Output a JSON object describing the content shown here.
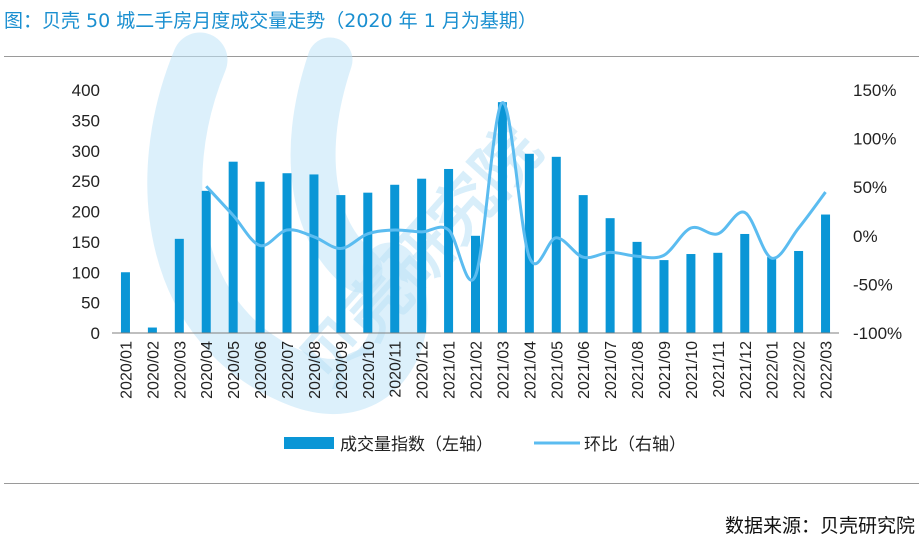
{
  "title": "图：贝壳 50 城二手房月度成交量走势（2020 年 1 月为基期）",
  "source": "数据来源：贝壳研究院",
  "watermark": "贝壳研究院",
  "colors": {
    "bar": "#0a96d6",
    "line": "#5bbcf0",
    "title": "#1a8fd0",
    "axis": "#7f7f7f",
    "watermark": "#bfe3f7"
  },
  "chart_data": {
    "type": "bar",
    "categories": [
      "2020/01",
      "2020/02",
      "2020/03",
      "2020/04",
      "2020/05",
      "2020/06",
      "2020/07",
      "2020/08",
      "2020/09",
      "2020/10",
      "2020/11",
      "2020/12",
      "2021/01",
      "2021/02",
      "2021/03",
      "2021/04",
      "2021/05",
      "2021/06",
      "2021/07",
      "2021/08",
      "2021/09",
      "2021/10",
      "2021/11",
      "2021/12",
      "2022/01",
      "2022/02",
      "2022/03"
    ],
    "series": [
      {
        "name": "成交量指数（左轴）",
        "type": "bar",
        "axis": "left",
        "values": [
          100,
          9,
          155,
          234,
          282,
          249,
          263,
          261,
          227,
          231,
          244,
          254,
          270,
          160,
          380,
          295,
          290,
          227,
          189,
          150,
          120,
          130,
          132,
          163,
          125,
          135,
          195
        ]
      },
      {
        "name": "环比（右轴）",
        "type": "line",
        "axis": "right",
        "values": [
          null,
          null,
          null,
          51,
          21,
          -10,
          6,
          -1,
          -13,
          2,
          6,
          4,
          6,
          -41,
          137,
          -22,
          -2,
          -22,
          -17,
          -21,
          -20,
          8,
          2,
          24,
          -23,
          8,
          45
        ]
      }
    ],
    "left_axis": {
      "ylim": [
        0,
        400
      ],
      "ticks": [
        "0",
        "50",
        "100",
        "150",
        "200",
        "250",
        "300",
        "350",
        "400"
      ]
    },
    "right_axis": {
      "ylim": [
        -100,
        150
      ],
      "ticks": [
        "-100%",
        "-50%",
        "0%",
        "50%",
        "100%",
        "150%"
      ]
    },
    "legend_position": "bottom",
    "grid": false
  }
}
